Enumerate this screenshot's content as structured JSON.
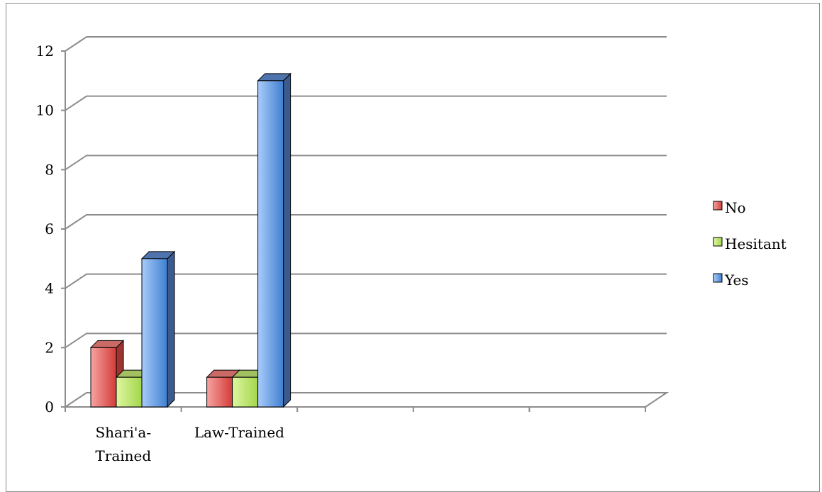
{
  "chart_data": {
    "type": "bar",
    "title": "",
    "xlabel": "",
    "ylabel": "",
    "categories": [
      "Shari'a-Trained",
      "Law-Trained"
    ],
    "category_lines": [
      [
        "Shari'a-",
        "Trained"
      ],
      [
        "Law-Trained"
      ]
    ],
    "series": [
      {
        "name": "No",
        "values": [
          2,
          1
        ]
      },
      {
        "name": "Hesitant",
        "values": [
          1,
          1
        ]
      },
      {
        "name": "Yes",
        "values": [
          5,
          11
        ]
      }
    ],
    "ylim": [
      0,
      12
    ],
    "yticks": [
      "0",
      "2",
      "4",
      "6",
      "8",
      "10",
      "12"
    ],
    "grid": true,
    "legend_position": "right",
    "colors": {
      "No": {
        "front": "#e8524f",
        "side": "#9e3331",
        "top": "#c96a67"
      },
      "Hesitant": {
        "front": "#b5e061",
        "side": "#7a9e3a",
        "top": "#a2c060"
      },
      "Yes": {
        "front": "#6b9fe6",
        "side": "#3b5b8e",
        "top": "#4f74ad"
      }
    }
  }
}
